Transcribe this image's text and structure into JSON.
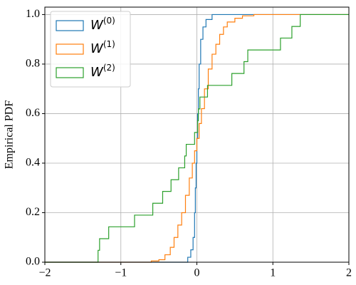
{
  "chart_data": {
    "type": "step",
    "ylabel": "Empirical PDF",
    "xlim": [
      -2,
      2
    ],
    "ylim": [
      0,
      1.03
    ],
    "xticks": [
      {
        "value": -2,
        "label": "−2"
      },
      {
        "value": -1,
        "label": "−1"
      },
      0,
      1,
      2
    ],
    "yticks": [
      {
        "value": 0,
        "label": "0.0"
      },
      0.2,
      0.4,
      0.6,
      0.8,
      {
        "value": 1,
        "label": "1.0"
      }
    ],
    "grid": true,
    "legend": "upper left",
    "series": [
      {
        "name": "W(0)",
        "color": "#1f77b4",
        "x": [
          -0.12,
          -0.08,
          -0.05,
          -0.03,
          -0.02,
          -0.01,
          0,
          0.01,
          0.02,
          0.03,
          0.05,
          0.08,
          0.12,
          0.2
        ],
        "values": [
          0.02,
          0.05,
          0.1,
          0.2,
          0.3,
          0.4,
          0.5,
          0.6,
          0.7,
          0.8,
          0.9,
          0.95,
          0.98,
          1.0
        ]
      },
      {
        "name": "W(1)",
        "color": "#ff7f0e",
        "x": [
          -0.6,
          -0.5,
          -0.42,
          -0.35,
          -0.3,
          -0.25,
          -0.2,
          -0.15,
          -0.1,
          -0.06,
          -0.03,
          0,
          0.03,
          0.06,
          0.1,
          0.15,
          0.2,
          0.25,
          0.3,
          0.35,
          0.4,
          0.5,
          0.6,
          0.75
        ],
        "values": [
          0.005,
          0.01,
          0.03,
          0.06,
          0.1,
          0.15,
          0.2,
          0.27,
          0.34,
          0.4,
          0.45,
          0.5,
          0.56,
          0.62,
          0.7,
          0.78,
          0.84,
          0.88,
          0.92,
          0.95,
          0.97,
          0.985,
          0.995,
          1.0
        ]
      },
      {
        "name": "W(2)",
        "color": "#2ca02c",
        "x": [
          -1.3,
          -1.28,
          -1.16,
          -0.82,
          -0.58,
          -0.45,
          -0.34,
          -0.24,
          -0.16,
          -0.14,
          -0.03,
          0.01,
          0.02,
          0.04,
          0.14,
          0.46,
          0.62,
          0.67,
          1.1,
          1.25,
          1.36
        ],
        "values": [
          0.048,
          0.095,
          0.143,
          0.19,
          0.238,
          0.286,
          0.333,
          0.381,
          0.429,
          0.476,
          0.524,
          0.571,
          0.619,
          0.667,
          0.714,
          0.762,
          0.81,
          0.857,
          0.905,
          0.952,
          1.0
        ]
      }
    ]
  }
}
